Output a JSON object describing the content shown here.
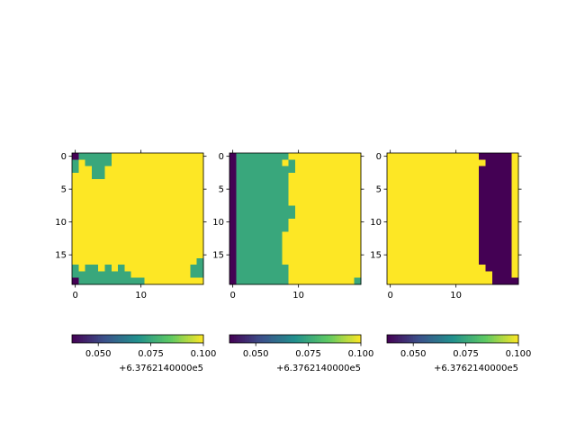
{
  "figure": {
    "background": "#ffffff",
    "colormap": "viridis",
    "colormap_stops": [
      "#440154",
      "#3b528b",
      "#21908d",
      "#5dc963",
      "#fde725"
    ]
  },
  "chart_data": [
    {
      "type": "heatmap",
      "title": "",
      "shape": [
        20,
        20
      ],
      "x_ticks": [
        0,
        10
      ],
      "y_ticks": [
        0,
        5,
        10,
        15
      ],
      "x_tick_labels": [
        "0",
        "10"
      ],
      "y_tick_labels": [
        "0",
        "5",
        "10",
        "15"
      ],
      "legend": "",
      "grid": false,
      "value_levels": {
        "0": 0.0375,
        "1": 0.075,
        "2": 0.1
      },
      "value_offset": "+6.3762140000e5",
      "rows": [
        "01111122222222222222",
        "12111122222222222222",
        "12211222222222222222",
        "22211222222222222222",
        "22222222222222222222",
        "22222222222222222222",
        "22222222222222222222",
        "22222222222222222222",
        "22222222222222222222",
        "22222222222222222222",
        "22222222222222222222",
        "22222222222222222222",
        "22222222222222222222",
        "22222222222222222222",
        "22222222222222222222",
        "22222222222222222222",
        "22222222222222222221",
        "12112121222222222211",
        "11111111122222222211",
        "01111111111222222222"
      ],
      "colorbar": {
        "range": [
          0.0375,
          0.1
        ],
        "ticks": [
          0.05,
          0.075,
          0.1
        ],
        "tick_labels": [
          "0.050",
          "0.075",
          "0.100"
        ],
        "offset_label": "+6.3762140000e5"
      }
    },
    {
      "type": "heatmap",
      "title": "",
      "shape": [
        20,
        20
      ],
      "x_ticks": [
        0,
        10
      ],
      "y_ticks": [
        0,
        5,
        10,
        15
      ],
      "x_tick_labels": [
        "0",
        "10"
      ],
      "y_tick_labels": [
        "0",
        "5",
        "10",
        "15"
      ],
      "legend": "",
      "grid": false,
      "value_levels": {
        "0": 0.0375,
        "1": 0.075,
        "2": 0.1
      },
      "value_offset": "+6.3762140000e5",
      "rows": [
        "01111111122222222222",
        "01111111212222222222",
        "01111111112222222222",
        "01111111122222222222",
        "01111111122222222222",
        "01111111122222222222",
        "01111111122222222222",
        "01111111122222222222",
        "01111111112222222222",
        "01111111112222222222",
        "01111111122222222222",
        "01111111122222222222",
        "01111111222222222222",
        "01111111222222222222",
        "01111111222222222222",
        "01111111222222222222",
        "01111111222222222222",
        "01111111122222222222",
        "01111111122222222222",
        "01111111122222222221"
      ],
      "colorbar": {
        "range": [
          0.0375,
          0.1
        ],
        "ticks": [
          0.05,
          0.075,
          0.1
        ],
        "tick_labels": [
          "0.050",
          "0.075",
          "0.100"
        ],
        "offset_label": "+6.3762140000e5"
      }
    },
    {
      "type": "heatmap",
      "title": "",
      "shape": [
        20,
        20
      ],
      "x_ticks": [
        0,
        10
      ],
      "y_ticks": [
        0,
        5,
        10,
        15
      ],
      "x_tick_labels": [
        "0",
        "10"
      ],
      "y_tick_labels": [
        "0",
        "5",
        "10",
        "15"
      ],
      "legend": "",
      "grid": false,
      "value_levels": {
        "0": 0.0375,
        "1": 0.075,
        "2": 0.1
      },
      "value_offset": "+6.3762140000e5",
      "rows": [
        "22222222222222000002",
        "22222222222222200002",
        "22222222222222000002",
        "22222222222222000002",
        "22222222222222000002",
        "22222222222222000002",
        "22222222222222000002",
        "22222222222222000002",
        "22222222222222000002",
        "22222222222222000002",
        "22222222222222000002",
        "22222222222222000002",
        "22222222222222000002",
        "22222222222222000002",
        "22222222222222000002",
        "22222222222222000002",
        "22222222222222000002",
        "22222222222222200002",
        "22222222222222220002",
        "22222222222222220000"
      ],
      "colorbar": {
        "range": [
          0.0375,
          0.1
        ],
        "ticks": [
          0.05,
          0.075,
          0.1
        ],
        "tick_labels": [
          "0.050",
          "0.075",
          "0.100"
        ],
        "offset_label": "+6.3762140000e5"
      }
    }
  ]
}
